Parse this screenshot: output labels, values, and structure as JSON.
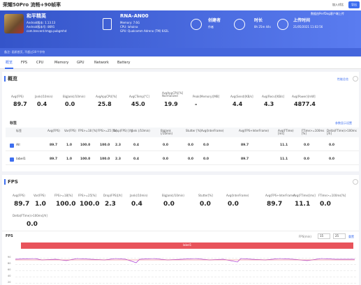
{
  "topbar": {
    "title": "荣耀50Pro 流畅+90帧率",
    "compare": "加入对比",
    "export": "导出"
  },
  "app": {
    "name": "和平精英",
    "lines": [
      "Android版本: 1.13.13",
      "Android版本号: 8691",
      "com.tencent.tmgp.pubgmhd"
    ]
  },
  "device": {
    "name": "RNA-AN00",
    "lines": [
      "Memory: 7.6G",
      "CPU: lahaina",
      "GPU: Qualcomm Adreno (TM) 642L"
    ]
  },
  "creator": {
    "label": "创建者",
    "value": "作者"
  },
  "duration": {
    "label": "时长",
    "value": "8h 25m 44s"
  },
  "upload": {
    "label": "上传时间",
    "value": "21/05/2021 11:02:56",
    "note": "数据由PerfDog客户端上传"
  },
  "note": "备注: 画质首页, 不超过30个字符",
  "tabs": [
    "概览",
    "FPS",
    "CPU",
    "Memory",
    "GPU",
    "Network",
    "Battery"
  ],
  "overview": {
    "title": "概览",
    "link": "性能总览",
    "stats": [
      {
        "label": "Avg(FPS)",
        "value": "89.7"
      },
      {
        "label": "Jank(/10min)",
        "value": "0.4"
      },
      {
        "label": "BigJank(/10min)",
        "value": "0.0"
      },
      {
        "label": "AvgAppCPU[%]",
        "value": "25.8"
      },
      {
        "label": "AvgCTemp[°C]",
        "value": "45.0"
      },
      {
        "label": "AvgAppCPU[%] Normalized",
        "value": "19.9"
      },
      {
        "label": "Peak(Memory)[MB]",
        "value": "-"
      },
      {
        "label": "Avg(Send)[KB/s]",
        "value": "4.4"
      },
      {
        "label": "Avg(Recv)[KB/s]",
        "value": "4.3"
      },
      {
        "label": "Avg(Power)[mW]",
        "value": "4877.4"
      }
    ]
  },
  "labels": {
    "title": "标签",
    "link": "参数显示设置",
    "columns": [
      "标签",
      "Avg(FPS)",
      "Var(FPS)",
      "FPS>=18 [%]",
      "FPS>=25 [%]",
      "Drop(FPS) [/h]",
      "Jank (/10min)",
      "BigJank (/10min)",
      "Stutter [%]",
      "Avg(InterFrame)",
      "Avg(FPS+InterFrame)",
      "Avg(FTime) [ms]",
      "FTime>=100ms [%]",
      "Delta(FTime)>100ms [/h]"
    ],
    "rows": [
      [
        "All",
        "89.7",
        "1.0",
        "100.0",
        "100.0",
        "2.3",
        "0.4",
        "0.0",
        "0.0",
        "0.0",
        "89.7",
        "11.1",
        "0.0",
        "0.0"
      ],
      [
        "label1",
        "89.7",
        "1.0",
        "100.0",
        "100.0",
        "2.3",
        "0.4",
        "0.0",
        "0.0",
        "0.0",
        "89.7",
        "11.1",
        "0.0",
        "0.0"
      ]
    ]
  },
  "fps": {
    "title": "FPS",
    "stats": [
      {
        "label": "Avg(FPS)",
        "value": "89.7"
      },
      {
        "label": "Var(FPS)",
        "value": "1.0"
      },
      {
        "label": "FPS>=18[%]",
        "value": "100.0"
      },
      {
        "label": "FPS>=25[%]",
        "value": "100.0"
      },
      {
        "label": "Drop(FPS)[/h]",
        "value": "2.3"
      },
      {
        "label": "Jank(/10min)",
        "value": "0.4"
      },
      {
        "label": "BigJank(/10min)",
        "value": "0.0"
      },
      {
        "label": "Stutter[%]",
        "value": "0.0"
      },
      {
        "label": "Avg(InterFrame)",
        "value": "0.0"
      },
      {
        "label": "Avg(FPS+InterFrame)",
        "value": "89.7"
      },
      {
        "label": "Avg(FTime)[ms]",
        "value": "11.1"
      },
      {
        "label": "FTime>=100ms[%]",
        "value": "0.0"
      },
      {
        "label": "Delta(FTime)>100ms[/h]",
        "value": "0.0"
      }
    ],
    "chart": {
      "title": "FPS",
      "legend": "FPS(min)",
      "range": [
        "15",
        "25"
      ],
      "reset": "重置",
      "label": "label1",
      "yticks": [
        "90",
        "80",
        "60",
        "40",
        "20"
      ]
    }
  }
}
